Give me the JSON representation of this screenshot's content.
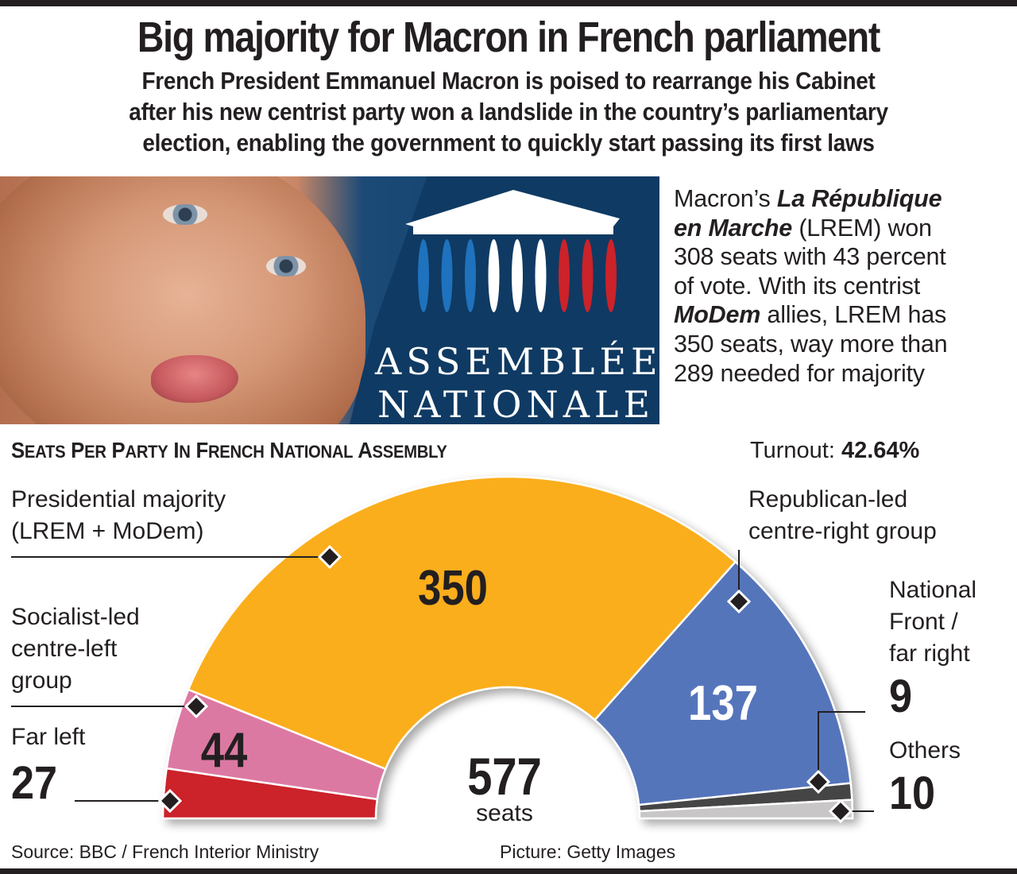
{
  "headline": "Big majority for Macron in French parliament",
  "standfirst": [
    "French President Emmanuel Macron is poised to rearrange his Cabinet",
    "after his new centrist party won a landslide in the country’s parliamentary",
    "election, enabling the government to quickly start passing its first laws"
  ],
  "photo": {
    "subject": "Emmanuel Macron portrait",
    "logo": {
      "line1": "ASSEMBLÉE",
      "line2": "NATIONALE",
      "column_colors": [
        "#1f72bd",
        "#1f72bd",
        "#1f72bd",
        "#ffffff",
        "#ffffff",
        "#ffffff",
        "#cc2229",
        "#cc2229",
        "#cc2229"
      ],
      "background": "#0f3a63"
    }
  },
  "info": {
    "p1": "Macron’s ",
    "party_name_1": "La République",
    "party_name_2": "en Marche",
    "p2": " (LREM) won",
    "p3": "308 seats with 43 percent",
    "p4": "of vote. With its centrist",
    "ally": "MoDem",
    "p5": " allies, LREM has",
    "p6": "350 seats, way more than",
    "p7": "289 needed for majority"
  },
  "section_title": "Seats per Party in French National Assembly",
  "turnout": {
    "label": "Turnout: ",
    "value": "42.64%"
  },
  "center": {
    "total": "577",
    "unit": "seats"
  },
  "footer": {
    "source": "Source: BBC / French Interior Ministry",
    "picture": "Picture: Getty Images"
  },
  "chart_data": {
    "type": "pie",
    "subtype": "hemicycle",
    "title": "Seats per Party in French National Assembly",
    "total": 577,
    "categories": [
      "Far left",
      "Socialist-led centre-left group",
      "Presidential majority (LREM + MoDem)",
      "Republican-led centre-right group",
      "National Front / far right",
      "Others"
    ],
    "values": [
      27,
      44,
      350,
      137,
      9,
      10
    ],
    "colors": [
      "#cc2229",
      "#dc79a3",
      "#fbae1b",
      "#5574bb",
      "#444444",
      "#c8c6c6"
    ],
    "labels": {
      "far_left": {
        "line1": "Far left",
        "value": "27"
      },
      "socialist": {
        "line1": "Socialist-led",
        "line2": "centre-left",
        "line3": "group",
        "value": "44"
      },
      "presidential": {
        "line1": "Presidential majority",
        "line2": "(LREM + MoDem)",
        "value": "350"
      },
      "republican": {
        "line1": "Republican-led",
        "line2": "centre-right group",
        "value": "137"
      },
      "national_front": {
        "line1": "National",
        "line2": "Front /",
        "line3": "far right",
        "value": "9"
      },
      "others": {
        "line1": "Others",
        "value": "10"
      }
    },
    "legend": "none",
    "grid": false
  }
}
